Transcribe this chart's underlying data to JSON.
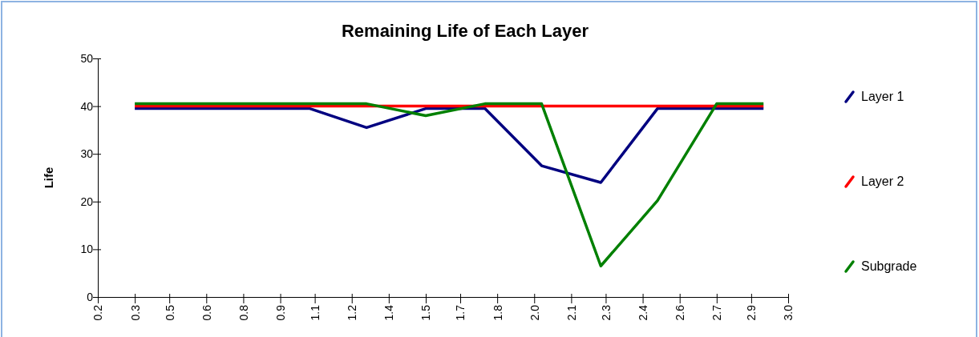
{
  "chart_data": {
    "type": "line",
    "title": "Remaining Life of Each Layer",
    "ylabel": "Life",
    "x": [
      0.35,
      0.59,
      0.82,
      1.06,
      1.29,
      1.53,
      1.77,
      2.0,
      2.24,
      2.47,
      2.71,
      2.9
    ],
    "series": [
      {
        "name": "Layer 1",
        "color": "#000080",
        "values": [
          39.5,
          39.5,
          39.5,
          39.5,
          35.5,
          39.5,
          39.5,
          27.5,
          24,
          39.5,
          39.5,
          39.5
        ]
      },
      {
        "name": "Layer 2",
        "color": "#ff0000",
        "values": [
          40,
          40,
          40,
          40,
          40,
          40,
          40,
          40,
          40,
          40,
          40,
          40
        ]
      },
      {
        "name": "Subgrade",
        "color": "#008000",
        "values": [
          40.5,
          40.5,
          40.5,
          40.5,
          40.5,
          38,
          40.5,
          40.5,
          6.5,
          20.2,
          40.5,
          40.5
        ]
      }
    ],
    "xlim": [
      0.2,
      3.0
    ],
    "xticks": [
      {
        "value": 0.2,
        "label": "0.2"
      },
      {
        "value": 0.35,
        "label": "0.3"
      },
      {
        "value": 0.49,
        "label": "0.5"
      },
      {
        "value": 0.64,
        "label": "0.6"
      },
      {
        "value": 0.79,
        "label": "0.8"
      },
      {
        "value": 0.94,
        "label": "0.9"
      },
      {
        "value": 1.08,
        "label": "1.1"
      },
      {
        "value": 1.23,
        "label": "1.2"
      },
      {
        "value": 1.38,
        "label": "1.4"
      },
      {
        "value": 1.53,
        "label": "1.5"
      },
      {
        "value": 1.67,
        "label": "1.7"
      },
      {
        "value": 1.82,
        "label": "1.8"
      },
      {
        "value": 1.97,
        "label": "2.0"
      },
      {
        "value": 2.12,
        "label": "2.1"
      },
      {
        "value": 2.26,
        "label": "2.3"
      },
      {
        "value": 2.41,
        "label": "2.4"
      },
      {
        "value": 2.56,
        "label": "2.6"
      },
      {
        "value": 2.71,
        "label": "2.7"
      },
      {
        "value": 2.85,
        "label": "2.9"
      },
      {
        "value": 3.0,
        "label": "3.0"
      }
    ],
    "ylim": [
      0,
      50
    ],
    "yticks": [
      0,
      10,
      20,
      30,
      40,
      50
    ],
    "grid": false,
    "legend": "right",
    "marker": "none",
    "line_style": "solid"
  }
}
